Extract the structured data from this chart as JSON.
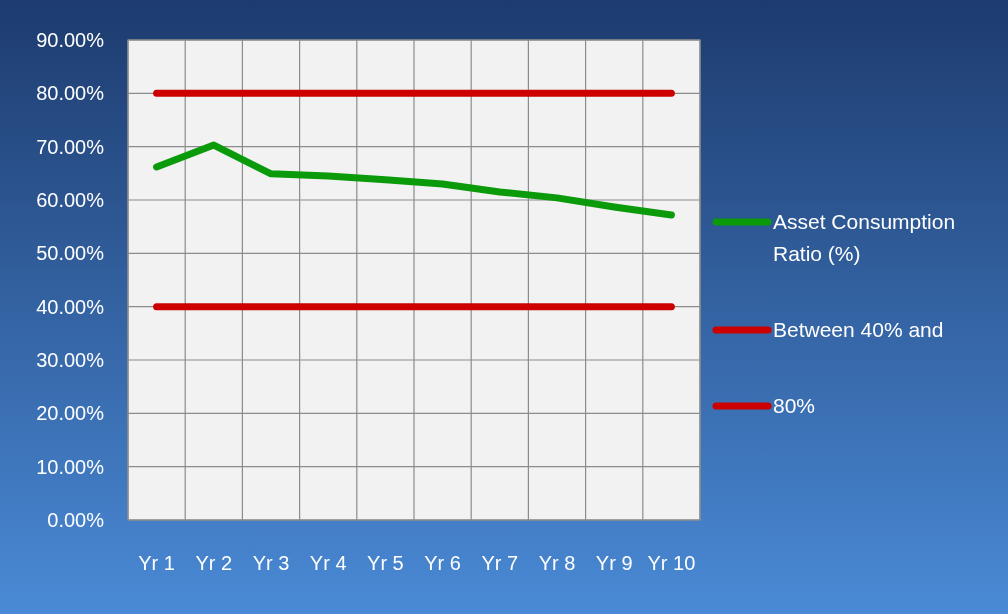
{
  "chart_data": {
    "type": "line",
    "categories": [
      "Yr 1",
      "Yr 2",
      "Yr 3",
      "Yr 4",
      "Yr 5",
      "Yr 6",
      "Yr 7",
      "Yr 8",
      "Yr 9",
      "Yr 10"
    ],
    "series": [
      {
        "name": "Asset Consumption Ratio (%)",
        "color": "#0a9a0a",
        "values": [
          66.2,
          70.3,
          64.9,
          64.5,
          63.8,
          63.0,
          61.5,
          60.4,
          58.7,
          57.2
        ]
      },
      {
        "name": "Between 40% and",
        "color": "#cc0000",
        "values": [
          40,
          40,
          40,
          40,
          40,
          40,
          40,
          40,
          40,
          40
        ]
      },
      {
        "name": "80%",
        "color": "#cc0000",
        "values": [
          80,
          80,
          80,
          80,
          80,
          80,
          80,
          80,
          80,
          80
        ]
      }
    ],
    "ylim": [
      0,
      90
    ],
    "yticks": [
      {
        "value": 0,
        "label": "0.00%"
      },
      {
        "value": 10,
        "label": "10.00%"
      },
      {
        "value": 20,
        "label": "20.00%"
      },
      {
        "value": 30,
        "label": "30.00%"
      },
      {
        "value": 40,
        "label": "40.00%"
      },
      {
        "value": 50,
        "label": "50.00%"
      },
      {
        "value": 60,
        "label": "60.00%"
      },
      {
        "value": 70,
        "label": "70.00%"
      },
      {
        "value": 80,
        "label": "80.00%"
      },
      {
        "value": 90,
        "label": "90.00%"
      }
    ],
    "grid": true,
    "legend": "right",
    "marker": "none",
    "line_style": "solid"
  }
}
